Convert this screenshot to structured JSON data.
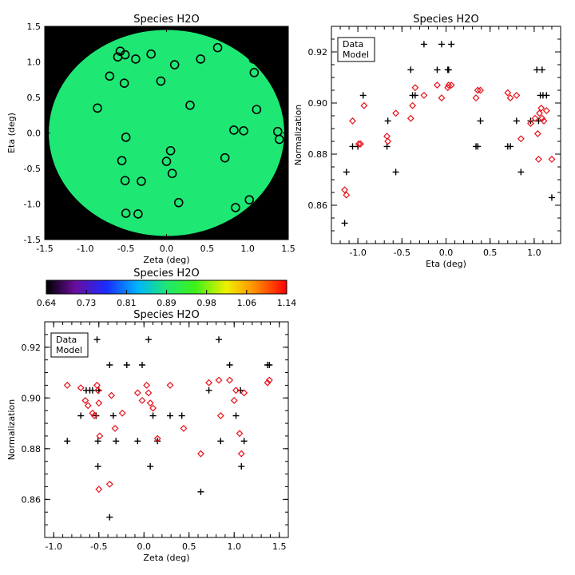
{
  "chart_data": [
    {
      "id": "map",
      "type": "heatmap",
      "title": "Species H2O",
      "xlabel": "Zeta (deg)",
      "ylabel": "Eta (deg)",
      "xlim": [
        -1.5,
        1.5
      ],
      "ylim": [
        -1.5,
        1.5
      ],
      "xticks": [
        "-1.5",
        "-1.0",
        "-0.5",
        "0.0",
        "0.5",
        "1.0",
        "1.5"
      ],
      "yticks": [
        "-1.5",
        "-1.0",
        "-0.5",
        "0.0",
        "0.5",
        "1.0",
        "1.5"
      ],
      "field_radius_deg": 1.45,
      "field_color": "#1ee873",
      "background_color": "#000000",
      "circles": [
        {
          "zeta": -0.6,
          "eta": 1.07
        },
        {
          "zeta": -0.57,
          "eta": 1.15
        },
        {
          "zeta": -0.51,
          "eta": 1.1
        },
        {
          "zeta": -0.38,
          "eta": 1.04
        },
        {
          "zeta": -0.19,
          "eta": 1.11
        },
        {
          "zeta": 0.1,
          "eta": 0.96
        },
        {
          "zeta": 0.42,
          "eta": 1.04
        },
        {
          "zeta": 0.63,
          "eta": 1.2
        },
        {
          "zeta": 1.07,
          "eta": 1.04
        },
        {
          "zeta": 1.08,
          "eta": 0.85
        },
        {
          "zeta": -0.7,
          "eta": 0.8
        },
        {
          "zeta": -0.52,
          "eta": 0.7
        },
        {
          "zeta": -0.07,
          "eta": 0.73
        },
        {
          "zeta": -0.85,
          "eta": 0.35
        },
        {
          "zeta": 0.29,
          "eta": 0.39
        },
        {
          "zeta": 1.11,
          "eta": 0.33
        },
        {
          "zeta": 0.83,
          "eta": 0.04
        },
        {
          "zeta": 0.95,
          "eta": 0.03
        },
        {
          "zeta": 1.37,
          "eta": 0.02
        },
        {
          "zeta": 1.39,
          "eta": -0.09
        },
        {
          "zeta": -0.5,
          "eta": -0.06
        },
        {
          "zeta": 0.05,
          "eta": -0.25
        },
        {
          "zeta": 0.72,
          "eta": -0.35
        },
        {
          "zeta": -0.55,
          "eta": -0.39
        },
        {
          "zeta": 0.0,
          "eta": -0.4
        },
        {
          "zeta": -0.51,
          "eta": -0.67
        },
        {
          "zeta": -0.31,
          "eta": -0.68
        },
        {
          "zeta": 0.07,
          "eta": -0.57
        },
        {
          "zeta": 0.15,
          "eta": -0.98
        },
        {
          "zeta": 1.02,
          "eta": -0.94
        },
        {
          "zeta": 0.85,
          "eta": -1.05
        },
        {
          "zeta": -0.5,
          "eta": -1.13
        },
        {
          "zeta": -0.35,
          "eta": -1.14
        }
      ]
    },
    {
      "id": "colorbar",
      "type": "colorbar",
      "title": "Species H2O",
      "range": [
        0.64,
        1.14
      ],
      "tick_labels": [
        "0.64",
        "0.73",
        "0.81",
        "0.89",
        "0.98",
        "1.06",
        "1.14"
      ]
    },
    {
      "id": "eta_plot",
      "type": "scatter",
      "title": "Species H2O",
      "xlabel": "Eta (deg)",
      "ylabel": "Normalization",
      "xlim": [
        -1.3,
        1.3
      ],
      "ylim": [
        0.845,
        0.93
      ],
      "xticks": [
        "-1.0",
        "-0.5",
        "0.0",
        "0.5",
        "1.0"
      ],
      "yticks": [
        "0.86",
        "0.88",
        "0.90",
        "0.92"
      ],
      "legend": [
        "Data",
        "Model"
      ],
      "legend_position": "top-left",
      "series": [
        {
          "name": "Data",
          "marker": "plus",
          "color": "#000000",
          "points": [
            [
              -1.15,
              0.853
            ],
            [
              -1.13,
              0.873
            ],
            [
              -1.06,
              0.883
            ],
            [
              -1.0,
              0.883
            ],
            [
              -0.94,
              0.903
            ],
            [
              -0.67,
              0.883
            ],
            [
              -0.66,
              0.893
            ],
            [
              -0.57,
              0.873
            ],
            [
              -0.4,
              0.913
            ],
            [
              -0.38,
              0.903
            ],
            [
              -0.35,
              0.903
            ],
            [
              -0.25,
              0.923
            ],
            [
              -0.1,
              0.913
            ],
            [
              -0.05,
              0.923
            ],
            [
              0.02,
              0.913
            ],
            [
              0.03,
              0.913
            ],
            [
              0.06,
              0.923
            ],
            [
              0.34,
              0.883
            ],
            [
              0.36,
              0.883
            ],
            [
              0.39,
              0.893
            ],
            [
              0.7,
              0.883
            ],
            [
              0.73,
              0.883
            ],
            [
              0.8,
              0.893
            ],
            [
              0.85,
              0.873
            ],
            [
              0.96,
              0.893
            ],
            [
              1.03,
              0.913
            ],
            [
              1.05,
              0.893
            ],
            [
              1.07,
              0.903
            ],
            [
              1.09,
              0.913
            ],
            [
              1.1,
              0.903
            ],
            [
              1.14,
              0.903
            ],
            [
              1.2,
              0.863
            ]
          ]
        },
        {
          "name": "Model",
          "marker": "diamond",
          "color": "#e8101a",
          "points": [
            [
              -1.15,
              0.866
            ],
            [
              -1.13,
              0.864
            ],
            [
              -1.06,
              0.893
            ],
            [
              -0.99,
              0.884
            ],
            [
              -0.97,
              0.884
            ],
            [
              -0.93,
              0.899
            ],
            [
              -0.67,
              0.887
            ],
            [
              -0.66,
              0.885
            ],
            [
              -0.57,
              0.896
            ],
            [
              -0.4,
              0.894
            ],
            [
              -0.38,
              0.899
            ],
            [
              -0.35,
              0.906
            ],
            [
              -0.25,
              0.903
            ],
            [
              -0.1,
              0.907
            ],
            [
              -0.05,
              0.902
            ],
            [
              0.02,
              0.906
            ],
            [
              0.03,
              0.907
            ],
            [
              0.06,
              0.907
            ],
            [
              0.34,
              0.902
            ],
            [
              0.36,
              0.905
            ],
            [
              0.39,
              0.905
            ],
            [
              0.7,
              0.904
            ],
            [
              0.73,
              0.902
            ],
            [
              0.8,
              0.903
            ],
            [
              0.85,
              0.886
            ],
            [
              0.96,
              0.892
            ],
            [
              1.01,
              0.894
            ],
            [
              1.04,
              0.888
            ],
            [
              1.05,
              0.878
            ],
            [
              1.06,
              0.896
            ],
            [
              1.08,
              0.898
            ],
            [
              1.09,
              0.894
            ],
            [
              1.11,
              0.893
            ],
            [
              1.14,
              0.897
            ],
            [
              1.2,
              0.878
            ]
          ]
        }
      ]
    },
    {
      "id": "zeta_plot",
      "type": "scatter",
      "title": "Species H2O",
      "xlabel": "Zeta (deg)",
      "ylabel": "Normalization",
      "xlim": [
        -1.1,
        1.6
      ],
      "ylim": [
        0.845,
        0.93
      ],
      "xticks": [
        "-1.0",
        "-0.5",
        "0.0",
        "0.5",
        "1.0",
        "1.5"
      ],
      "yticks": [
        "0.86",
        "0.88",
        "0.90",
        "0.92"
      ],
      "legend": [
        "Data",
        "Model"
      ],
      "legend_position": "top-left",
      "series": [
        {
          "name": "Data",
          "marker": "plus",
          "color": "#000000",
          "points": [
            [
              -0.85,
              0.883
            ],
            [
              -0.7,
              0.893
            ],
            [
              -0.64,
              0.903
            ],
            [
              -0.6,
              0.903
            ],
            [
              -0.57,
              0.903
            ],
            [
              -0.53,
              0.893
            ],
            [
              -0.52,
              0.923
            ],
            [
              -0.51,
              0.883
            ],
            [
              -0.51,
              0.873
            ],
            [
              -0.5,
              0.903
            ],
            [
              -0.38,
              0.853
            ],
            [
              -0.38,
              0.913
            ],
            [
              -0.34,
              0.893
            ],
            [
              -0.31,
              0.883
            ],
            [
              -0.19,
              0.913
            ],
            [
              -0.07,
              0.883
            ],
            [
              -0.02,
              0.913
            ],
            [
              0.05,
              0.923
            ],
            [
              0.07,
              0.873
            ],
            [
              0.1,
              0.893
            ],
            [
              0.15,
              0.883
            ],
            [
              0.29,
              0.893
            ],
            [
              0.42,
              0.893
            ],
            [
              0.63,
              0.863
            ],
            [
              0.72,
              0.903
            ],
            [
              0.83,
              0.923
            ],
            [
              0.85,
              0.883
            ],
            [
              0.95,
              0.913
            ],
            [
              1.02,
              0.893
            ],
            [
              1.07,
              0.903
            ],
            [
              1.08,
              0.873
            ],
            [
              1.11,
              0.883
            ],
            [
              1.37,
              0.913
            ],
            [
              1.39,
              0.913
            ]
          ]
        },
        {
          "name": "Model",
          "marker": "diamond",
          "color": "#e8101a",
          "points": [
            [
              -0.85,
              0.905
            ],
            [
              -0.7,
              0.904
            ],
            [
              -0.65,
              0.899
            ],
            [
              -0.62,
              0.897
            ],
            [
              -0.57,
              0.894
            ],
            [
              -0.55,
              0.893
            ],
            [
              -0.52,
              0.905
            ],
            [
              -0.51,
              0.903
            ],
            [
              -0.5,
              0.864
            ],
            [
              -0.49,
              0.885
            ],
            [
              -0.5,
              0.898
            ],
            [
              -0.38,
              0.866
            ],
            [
              -0.36,
              0.901
            ],
            [
              -0.32,
              0.888
            ],
            [
              -0.24,
              0.894
            ],
            [
              -0.07,
              0.902
            ],
            [
              -0.02,
              0.899
            ],
            [
              0.03,
              0.905
            ],
            [
              0.05,
              0.902
            ],
            [
              0.07,
              0.898
            ],
            [
              0.1,
              0.896
            ],
            [
              0.15,
              0.884
            ],
            [
              0.29,
              0.905
            ],
            [
              0.44,
              0.888
            ],
            [
              0.63,
              0.878
            ],
            [
              0.72,
              0.906
            ],
            [
              0.83,
              0.907
            ],
            [
              0.85,
              0.893
            ],
            [
              0.95,
              0.907
            ],
            [
              1.0,
              0.899
            ],
            [
              1.02,
              0.903
            ],
            [
              1.06,
              0.886
            ],
            [
              1.08,
              0.878
            ],
            [
              1.11,
              0.902
            ],
            [
              1.37,
              0.906
            ],
            [
              1.39,
              0.907
            ]
          ]
        }
      ]
    }
  ]
}
